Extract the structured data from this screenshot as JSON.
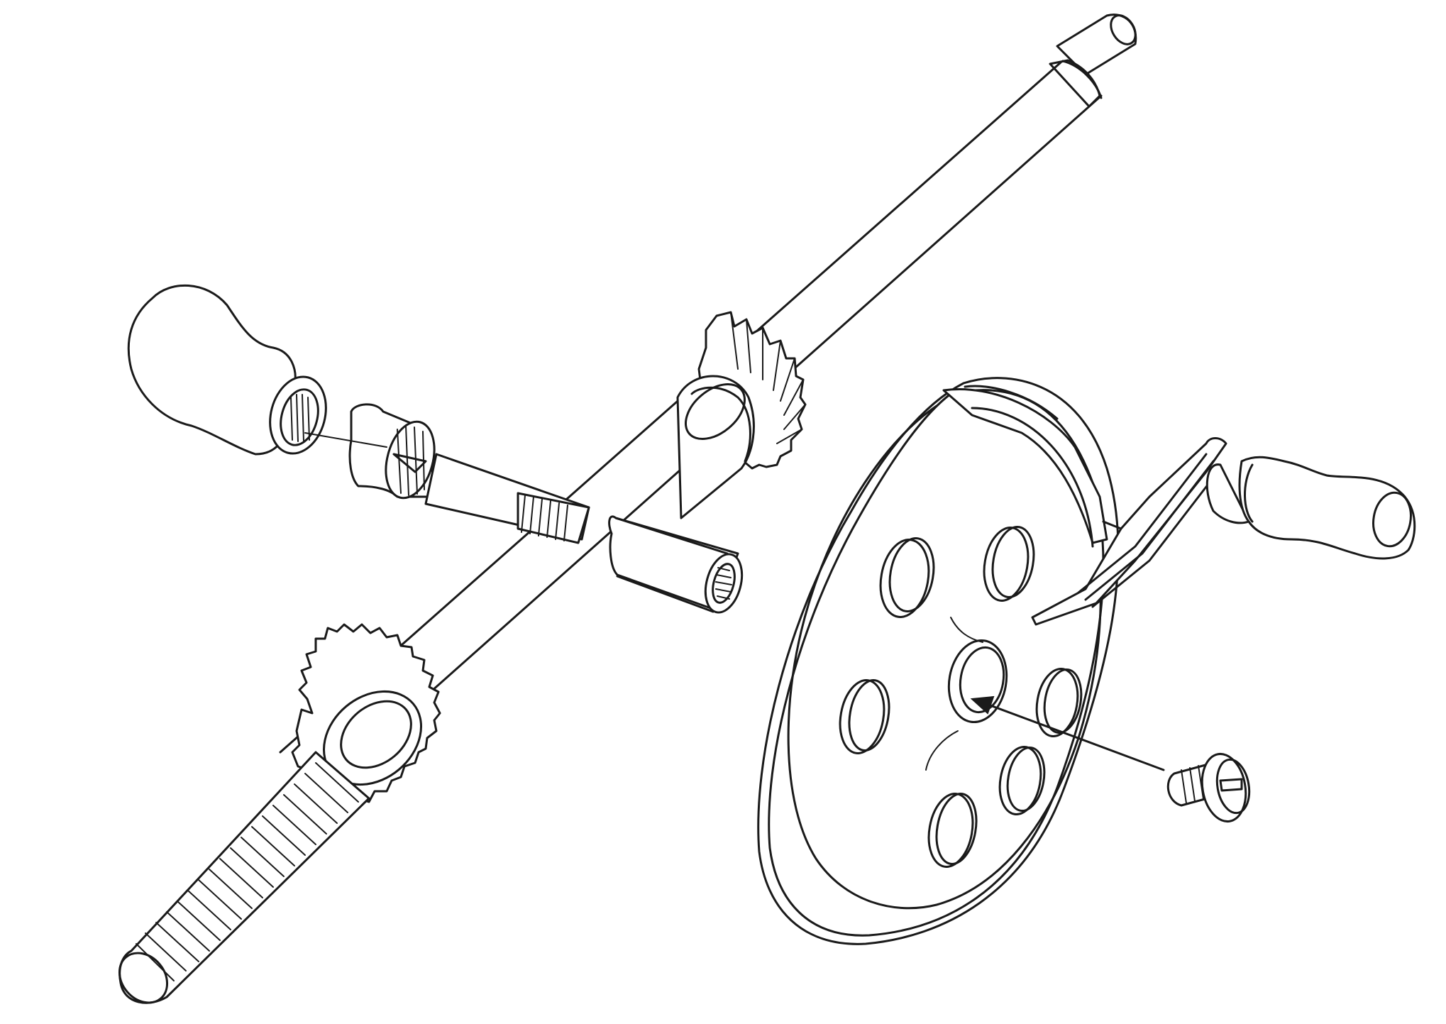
{
  "figure": {
    "type": "exploded-assembly-line-drawing",
    "style": "black outline on white",
    "line_color": "#1a1a1a",
    "background_color": "#ffffff",
    "parts": [
      {
        "id": "main-shaft",
        "icon": "long-cylindrical-shaft"
      },
      {
        "id": "upper-bevel-gear",
        "icon": "bevel-gear"
      },
      {
        "id": "lower-bevel-gear",
        "icon": "bevel-gear"
      },
      {
        "id": "threaded-end",
        "icon": "threaded-screw-end"
      },
      {
        "id": "cross-tube",
        "icon": "threaded-tube"
      },
      {
        "id": "knob-handle",
        "icon": "bulb-handle"
      },
      {
        "id": "ferrule",
        "icon": "ferrule-collar"
      },
      {
        "id": "splined-pinion",
        "icon": "splined-shaft"
      },
      {
        "id": "drive-wheel",
        "icon": "spoked-disc-wheel"
      },
      {
        "id": "crank-arm",
        "icon": "crank-arm"
      },
      {
        "id": "crank-grip",
        "icon": "wooden-grip"
      },
      {
        "id": "retaining-screw",
        "icon": "slotted-screw"
      },
      {
        "id": "assembly-arrow",
        "icon": "arrow"
      }
    ]
  }
}
